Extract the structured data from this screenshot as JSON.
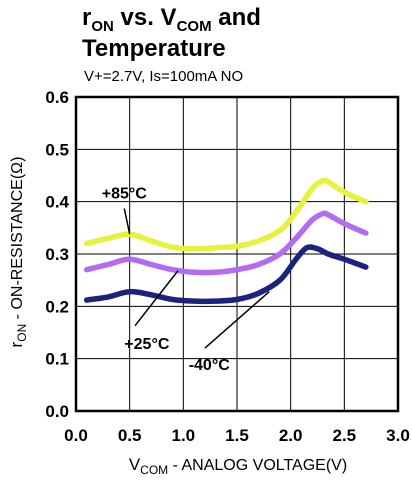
{
  "title": {
    "line1_main": "r",
    "line1_sub": "ON",
    "line1_mid": " vs. V",
    "line1_sub2": "COM",
    "line1_end": " and",
    "line2": "Temperature"
  },
  "conditions": "V+=2.7V, Is=100mA NO",
  "chart_data": {
    "type": "line",
    "xlabel_main": "V",
    "xlabel_sub": "COM",
    "xlabel_rest": " - ANALOG VOLTAGE(V)",
    "ylabel_main": "r",
    "ylabel_sub": "ON",
    "ylabel_rest": " - ON-RESISTANCE(Ω)",
    "xlim": [
      0.0,
      3.0
    ],
    "ylim": [
      0.0,
      0.6
    ],
    "xticks": [
      "0.0",
      "0.5",
      "1.0",
      "1.5",
      "2.0",
      "2.5",
      "3.0"
    ],
    "yticks": [
      "0.0",
      "0.1",
      "0.2",
      "0.3",
      "0.4",
      "0.5",
      "0.6"
    ],
    "grid": true,
    "series": [
      {
        "name": "+85°C",
        "color": "#e6f23c",
        "x": [
          0.1,
          0.3,
          0.5,
          0.7,
          0.9,
          1.1,
          1.3,
          1.5,
          1.7,
          1.9,
          2.05,
          2.2,
          2.3,
          2.35,
          2.5,
          2.7
        ],
        "y": [
          0.32,
          0.33,
          0.338,
          0.325,
          0.313,
          0.31,
          0.312,
          0.315,
          0.325,
          0.345,
          0.38,
          0.425,
          0.44,
          0.438,
          0.418,
          0.4
        ]
      },
      {
        "name": "+25°C",
        "color": "#b36cf0",
        "x": [
          0.1,
          0.3,
          0.5,
          0.7,
          0.9,
          1.1,
          1.3,
          1.5,
          1.7,
          1.9,
          2.05,
          2.2,
          2.3,
          2.35,
          2.5,
          2.7
        ],
        "y": [
          0.27,
          0.28,
          0.29,
          0.28,
          0.27,
          0.265,
          0.265,
          0.27,
          0.28,
          0.3,
          0.33,
          0.365,
          0.377,
          0.375,
          0.358,
          0.34
        ]
      },
      {
        "name": "-40°C",
        "color": "#1a237e",
        "x": [
          0.1,
          0.3,
          0.5,
          0.7,
          0.9,
          1.1,
          1.3,
          1.5,
          1.7,
          1.9,
          2.05,
          2.15,
          2.25,
          2.35,
          2.5,
          2.7
        ],
        "y": [
          0.212,
          0.218,
          0.228,
          0.222,
          0.213,
          0.21,
          0.21,
          0.213,
          0.225,
          0.25,
          0.29,
          0.312,
          0.31,
          0.3,
          0.29,
          0.275
        ]
      }
    ],
    "annotations": [
      {
        "text": "+85°C",
        "series": "+85°C"
      },
      {
        "text": "+25°C",
        "series": "+25°C"
      },
      {
        "text": "-40°C",
        "series": "-40°C"
      }
    ]
  }
}
